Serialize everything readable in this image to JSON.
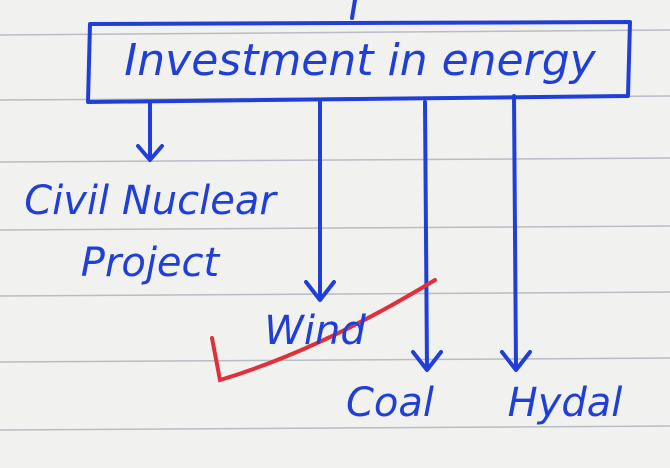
{
  "root": {
    "label": "Investment in energy"
  },
  "children": [
    {
      "label": "Civil Nuclear Project"
    },
    {
      "label": "Wind"
    },
    {
      "label": "Coal"
    },
    {
      "label": "Hydal"
    }
  ]
}
